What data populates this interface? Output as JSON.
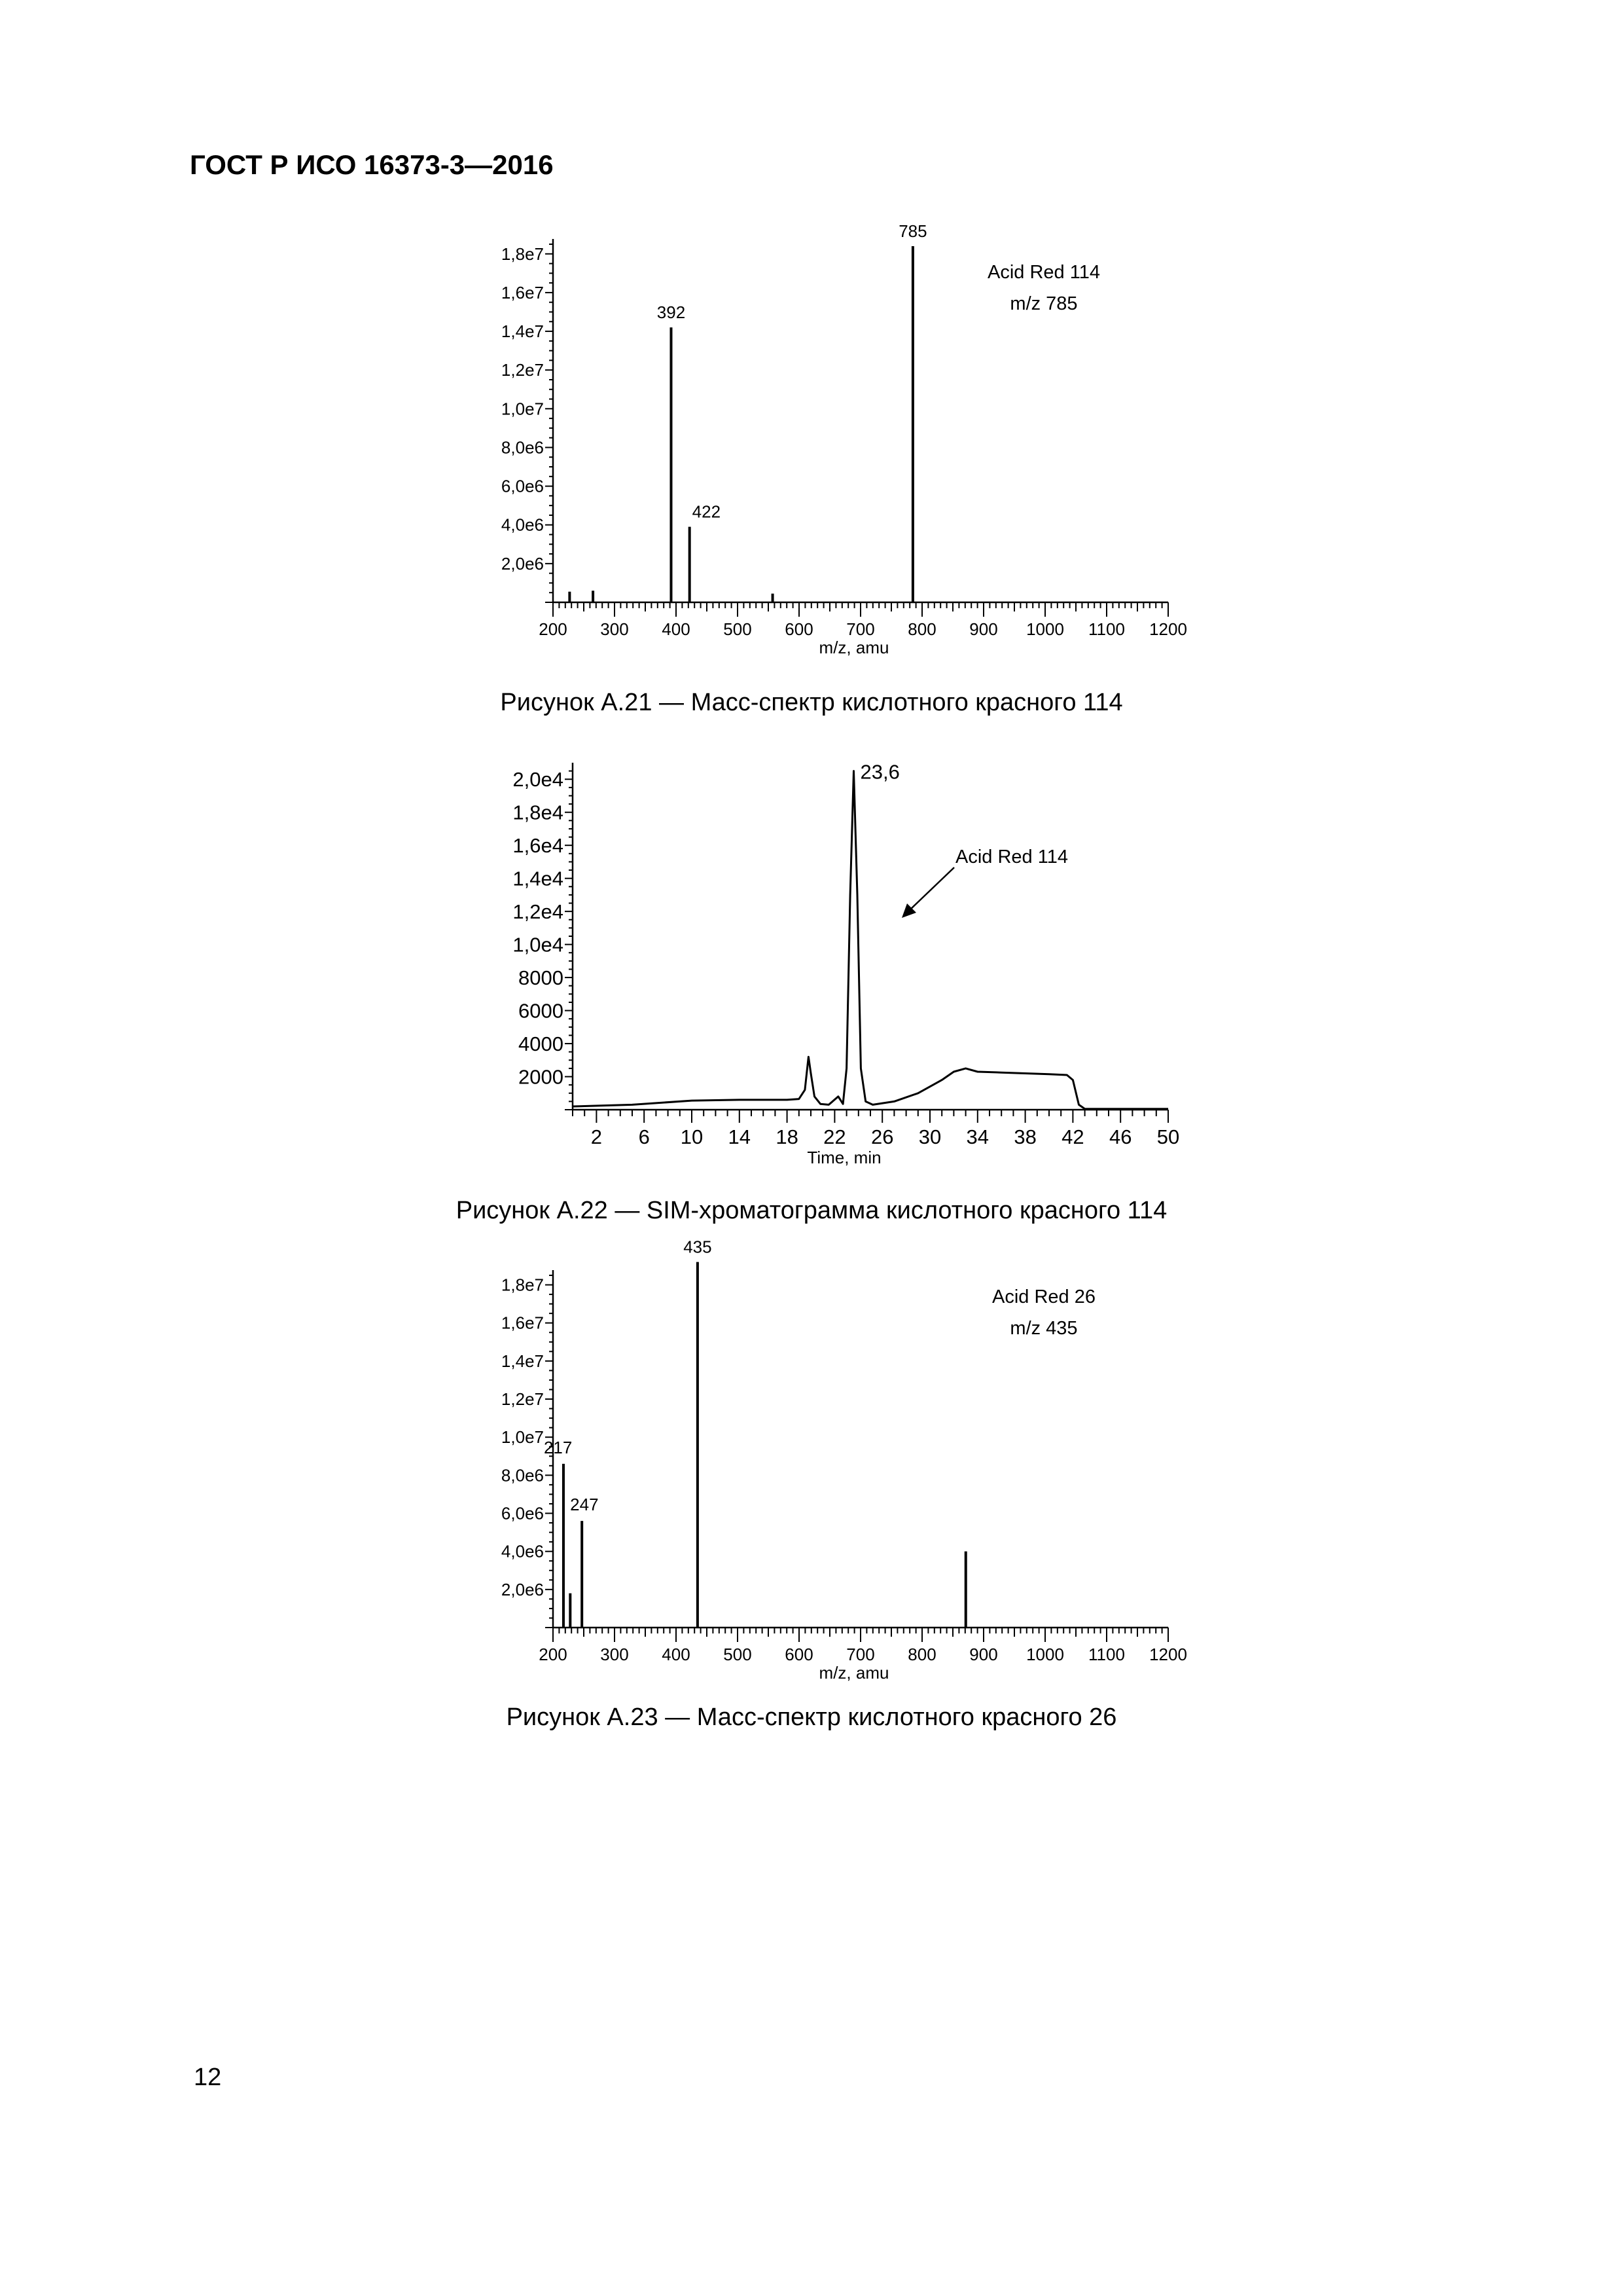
{
  "header": {
    "title": "ГОСТ Р ИСО 16373-3—2016"
  },
  "figures": [
    {
      "caption": "Рисунок А.21 — Масс-спектр кислотного красного 114",
      "chart_data": {
        "type": "bar",
        "xlabel": "m/z, amu",
        "ylabel": "",
        "xlim": [
          200,
          1200
        ],
        "ylim": [
          0,
          18500000.0
        ],
        "xticks": [
          "200",
          "300",
          "400",
          "500",
          "600",
          "700",
          "800",
          "900",
          "1000",
          "1100",
          "1200"
        ],
        "yticks": [
          "2,0e6",
          "4,0e6",
          "6,0e6",
          "8,0e6",
          "1,0e7",
          "1,2e7",
          "1,4e7",
          "1,6e7",
          "1,8e7"
        ],
        "peaks": [
          {
            "x": 227,
            "y": 550000.0
          },
          {
            "x": 265,
            "y": 600000.0
          },
          {
            "x": 392,
            "y": 14200000.0
          },
          {
            "x": 422,
            "y": 3900000.0
          },
          {
            "x": 557,
            "y": 450000.0
          },
          {
            "x": 785,
            "y": 18400000.0
          }
        ],
        "peak_labels": [
          "392",
          "422",
          "785"
        ],
        "annotation": [
          "Acid Red 114",
          "m/z 785"
        ]
      }
    },
    {
      "caption": "Рисунок А.22 — SIM-хроматограмма кислотного красного 114",
      "chart_data": {
        "type": "line",
        "xlabel": "Time, min",
        "ylabel": "",
        "xlim": [
          0,
          50
        ],
        "ylim": [
          0,
          21000
        ],
        "xticks": [
          "2",
          "6",
          "10",
          "14",
          "18",
          "22",
          "26",
          "30",
          "34",
          "38",
          "42",
          "46",
          "50"
        ],
        "yticks": [
          "2000",
          "4000",
          "6000",
          "8000",
          "1,0e4",
          "1,2e4",
          "1,4e4",
          "1,6e4",
          "1,8e4",
          "2,0e4"
        ],
        "series": [
          {
            "x": [
              0,
              5,
              10,
              14,
              18,
              19,
              19.5,
              19.8,
              20,
              20.3,
              20.8,
              21.5,
              22.3,
              22.7,
              23.0,
              23.3,
              23.6,
              23.9,
              24.2,
              24.6,
              25.2,
              27,
              29,
              31,
              32,
              33,
              34,
              36,
              38,
              40,
              41.5,
              42.0,
              42.5,
              43,
              50
            ],
            "values": [
              200,
              300,
              550,
              600,
              600,
              650,
              1200,
              3200,
              2200,
              800,
              350,
              300,
              800,
              350,
              2500,
              13000,
              20500,
              13000,
              2500,
              500,
              300,
              500,
              1000,
              1800,
              2300,
              2500,
              2300,
              2250,
              2200,
              2150,
              2100,
              1800,
              300,
              50,
              50
            ]
          }
        ],
        "peak_labels": [
          "23,6"
        ],
        "annotation": "Acid Red 114"
      }
    },
    {
      "caption": "Рисунок А.23 — Масс-спектр кислотного красного 26",
      "chart_data": {
        "type": "bar",
        "xlabel": "m/z, amu",
        "ylabel": "",
        "xlim": [
          200,
          1200
        ],
        "ylim": [
          0,
          18500000.0
        ],
        "xticks": [
          "200",
          "300",
          "400",
          "500",
          "600",
          "700",
          "800",
          "900",
          "1000",
          "1100",
          "1200"
        ],
        "yticks": [
          "2,0e6",
          "4,0e6",
          "6,0e6",
          "8,0e6",
          "1,0e7",
          "1,2e7",
          "1,4e7",
          "1,6e7",
          "1,8e7"
        ],
        "peaks": [
          {
            "x": 217,
            "y": 8600000.0
          },
          {
            "x": 228,
            "y": 1800000.0
          },
          {
            "x": 247,
            "y": 5600000.0
          },
          {
            "x": 435,
            "y": 19200000.0
          },
          {
            "x": 871,
            "y": 4000000.0
          }
        ],
        "peak_labels": [
          "217",
          "247",
          "435"
        ],
        "annotation": [
          "Acid Red 26",
          "m/z 435"
        ]
      }
    }
  ],
  "page_number": "12"
}
